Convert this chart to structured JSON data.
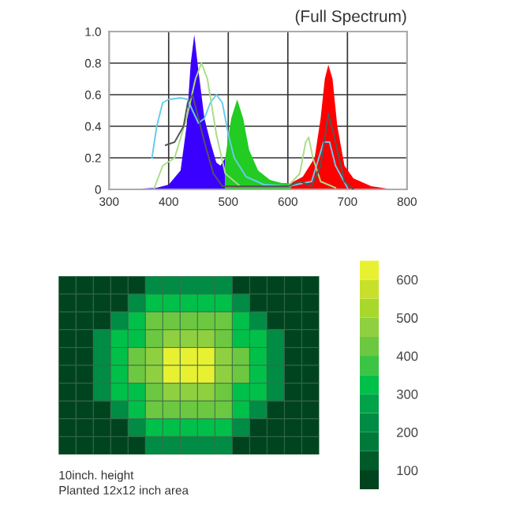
{
  "chart_data": [
    {
      "type": "area",
      "title": "(Full Spectrum)",
      "xlim": [
        300,
        800
      ],
      "xticks": [
        300,
        400,
        500,
        600,
        700,
        800
      ],
      "ylim": [
        0,
        1.0
      ],
      "yticks": [
        {
          "value": 0,
          "label": "0"
        },
        0.2,
        0.4,
        0.6,
        0.8,
        {
          "value": 1.0,
          "label": "1.0"
        }
      ],
      "grid": true,
      "series": [
        {
          "type": "area",
          "color": "#3a00ff",
          "x": [
            330,
            380,
            400,
            420,
            430,
            437,
            443,
            450,
            460,
            470,
            480,
            487,
            495
          ],
          "values": [
            0,
            0.01,
            0.03,
            0.12,
            0.4,
            0.8,
            0.98,
            0.75,
            0.45,
            0.3,
            0.17,
            0.15,
            0.2
          ]
        },
        {
          "type": "area",
          "color": "#22cc22",
          "x": [
            495,
            505,
            515,
            525,
            535,
            550,
            570,
            590,
            605
          ],
          "values": [
            0.2,
            0.45,
            0.57,
            0.45,
            0.25,
            0.12,
            0.06,
            0.04,
            0.04
          ]
        },
        {
          "type": "area",
          "color": "#ff0000",
          "x": [
            605,
            625,
            645,
            655,
            662,
            668,
            675,
            683,
            695,
            710,
            740,
            775
          ],
          "values": [
            0.04,
            0.08,
            0.2,
            0.45,
            0.7,
            0.79,
            0.7,
            0.4,
            0.15,
            0.07,
            0.02,
            0
          ]
        },
        {
          "type": "line",
          "color": "#66ccee",
          "x": [
            372,
            380,
            390,
            400,
            420,
            432,
            440,
            450,
            460,
            470,
            480,
            490,
            500,
            510,
            530,
            560,
            600,
            640,
            660,
            670,
            680,
            700
          ],
          "values": [
            0.2,
            0.4,
            0.55,
            0.57,
            0.58,
            0.57,
            0.5,
            0.42,
            0.45,
            0.55,
            0.6,
            0.55,
            0.35,
            0.2,
            0.08,
            0.03,
            0.02,
            0.05,
            0.3,
            0.3,
            0.15,
            0.01
          ]
        },
        {
          "type": "line",
          "color": "#aadd88",
          "x": [
            375,
            390,
            410,
            430,
            445,
            455,
            465,
            480,
            495,
            520,
            600,
            620,
            630,
            635,
            642,
            655,
            680
          ],
          "values": [
            0,
            0.15,
            0.2,
            0.45,
            0.7,
            0.8,
            0.7,
            0.35,
            0.1,
            0.02,
            0.02,
            0.1,
            0.3,
            0.33,
            0.2,
            0.05,
            0.01
          ]
        },
        {
          "type": "line",
          "color": "#555555",
          "x": [
            395,
            410,
            425,
            432,
            440,
            450,
            460,
            475,
            490,
            600,
            620,
            640,
            655,
            668,
            680,
            695,
            710
          ],
          "values": [
            0.28,
            0.3,
            0.4,
            0.55,
            0.6,
            0.45,
            0.3,
            0.1,
            0.02,
            0.02,
            0.05,
            0.02,
            0.15,
            0.48,
            0.3,
            0.05,
            0
          ]
        }
      ]
    },
    {
      "type": "heatmap",
      "categories": [
        null,
        null,
        null,
        null,
        null,
        null,
        null,
        null,
        null,
        null,
        null,
        null,
        null,
        null,
        null
      ],
      "y_categories": [
        null,
        null,
        null,
        null,
        null,
        null,
        null,
        null,
        null,
        null
      ],
      "tick_labels": false,
      "grid": true,
      "clim": [
        50,
        650
      ],
      "cticks": [
        100,
        200,
        300,
        400,
        500,
        600
      ],
      "colors": [
        "#00441f",
        "#005a2a",
        "#007a3a",
        "#008c44",
        "#00a348",
        "#00c04a",
        "#3cc445",
        "#6cc840",
        "#8fd040",
        "#a8d82c",
        "#c8e02a",
        "#e8f032"
      ],
      "cells": [
        [
          80,
          80,
          80,
          80,
          80,
          230,
          230,
          230,
          230,
          230,
          80,
          80,
          80,
          80,
          80
        ],
        [
          80,
          80,
          80,
          80,
          230,
          330,
          330,
          330,
          330,
          330,
          230,
          80,
          80,
          80,
          80
        ],
        [
          80,
          80,
          80,
          230,
          330,
          420,
          420,
          420,
          420,
          420,
          330,
          230,
          80,
          80,
          80
        ],
        [
          80,
          80,
          230,
          330,
          330,
          420,
          470,
          470,
          470,
          420,
          330,
          330,
          230,
          80,
          80
        ],
        [
          80,
          80,
          230,
          330,
          420,
          470,
          620,
          620,
          620,
          470,
          420,
          330,
          230,
          80,
          80
        ],
        [
          80,
          80,
          230,
          330,
          420,
          470,
          620,
          620,
          620,
          470,
          420,
          330,
          230,
          80,
          80
        ],
        [
          80,
          80,
          230,
          330,
          330,
          420,
          470,
          470,
          470,
          420,
          330,
          330,
          230,
          80,
          80
        ],
        [
          80,
          80,
          80,
          230,
          330,
          420,
          420,
          420,
          420,
          420,
          330,
          230,
          80,
          80,
          80
        ],
        [
          80,
          80,
          80,
          80,
          230,
          330,
          330,
          330,
          330,
          330,
          230,
          80,
          80,
          80,
          80
        ],
        [
          80,
          80,
          80,
          80,
          80,
          230,
          230,
          230,
          230,
          230,
          80,
          80,
          80,
          80,
          80
        ]
      ],
      "annotations": [
        "10inch. height",
        "Planted 12x12 inch area"
      ]
    }
  ]
}
